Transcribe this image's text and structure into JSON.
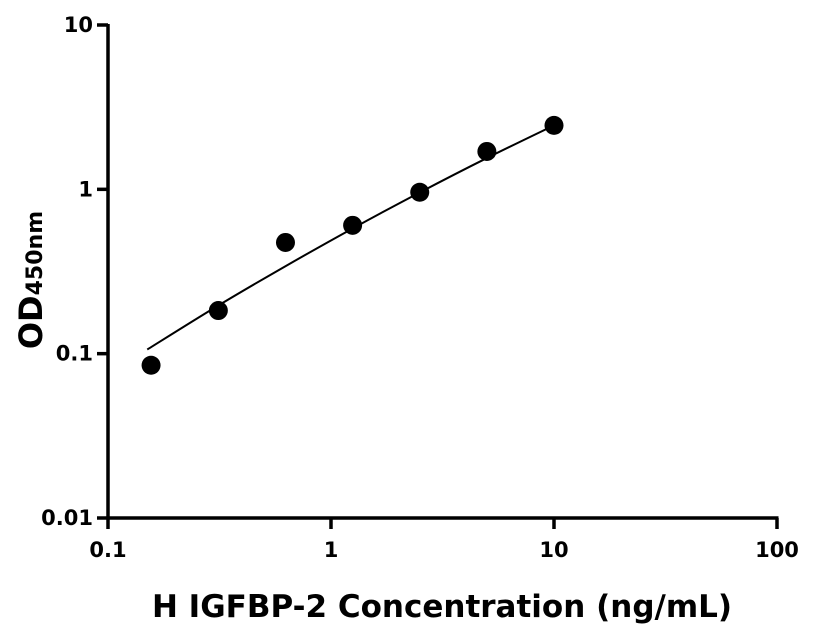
{
  "chart_data": {
    "type": "scatter",
    "title": "",
    "xlabel": "H IGFBP-2 Concentration (ng/mL)",
    "ylabel_main": "OD",
    "ylabel_sub": "450nm",
    "x_scale": "log",
    "y_scale": "log",
    "xlim": [
      0.1,
      100
    ],
    "ylim": [
      0.01,
      10
    ],
    "x_ticks": [
      0.1,
      1,
      10,
      100
    ],
    "x_tick_labels": [
      "0.1",
      "1",
      "10",
      "100"
    ],
    "y_ticks": [
      0.01,
      0.1,
      1,
      10
    ],
    "y_tick_labels": [
      "0.01",
      "0.1",
      "1",
      "10"
    ],
    "grid": false,
    "points": {
      "x": [
        0.156,
        0.3125,
        0.625,
        1.25,
        2.5,
        5,
        10
      ],
      "y": [
        0.085,
        0.183,
        0.475,
        0.604,
        0.96,
        1.7,
        2.45
      ]
    },
    "fit_curve": {
      "x": [
        0.15,
        0.3,
        0.6,
        1.25,
        2.5,
        5,
        10
      ],
      "y": [
        0.106,
        0.19,
        0.33,
        0.578,
        0.957,
        1.55,
        2.45
      ]
    },
    "colors": {
      "points": "#000000",
      "curve": "#000000",
      "axes": "#000000"
    }
  }
}
